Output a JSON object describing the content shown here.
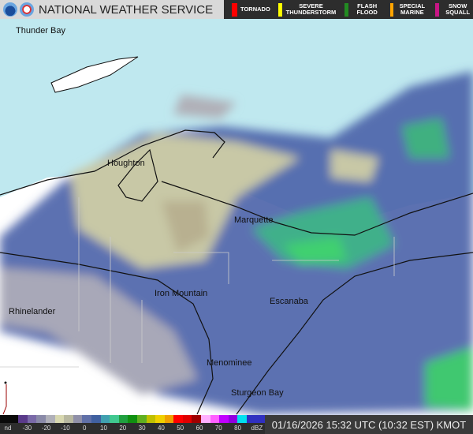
{
  "header": {
    "title": "NATIONAL WEATHER SERVICE",
    "logos": [
      "noaa-logo",
      "nws-logo"
    ]
  },
  "warnings": [
    {
      "label": "TORNADO",
      "color": "#ff0000"
    },
    {
      "label": "SEVERE THUNDERSTORM",
      "color": "#ffff00"
    },
    {
      "label": "FLASH FLOOD",
      "color": "#228b22"
    },
    {
      "label": "SPECIAL MARINE",
      "color": "#ffa500"
    },
    {
      "label": "SNOW SQUALL",
      "color": "#c71585"
    }
  ],
  "cities": [
    "Thunder Bay",
    "Houghton",
    "Marquette",
    "Iron Mountain",
    "Escanaba",
    "Rhinelander",
    "Menominee",
    "Sturgeon Bay"
  ],
  "legend": {
    "ticks": [
      "nd",
      "-30",
      "-20",
      "-10",
      "0",
      "10",
      "20",
      "30",
      "40",
      "50",
      "60",
      "70",
      "80",
      "dBZ"
    ],
    "colors": [
      "#0a0a0a",
      "#0a0a0a",
      "#5a3a8a",
      "#7a6aa8",
      "#8a8aa8",
      "#b0b0b8",
      "#d8d8b0",
      "#b8b8a0",
      "#9090a8",
      "#6070a8",
      "#4060a0",
      "#40a0b0",
      "#40c890",
      "#20a040",
      "#109010",
      "#60b020",
      "#c0c000",
      "#f0d000",
      "#f0a000",
      "#ff0000",
      "#e00000",
      "#a00000",
      "#ffb0ff",
      "#ff60ff",
      "#c000ff",
      "#9000e0",
      "#00e0f0",
      "#3030c0",
      "#3030c0"
    ]
  },
  "timestamp": "01/16/2026 15:32 UTC (10:32 EST) KMOT",
  "colors": {
    "water": "#bfe8ef",
    "land": "#ffffff",
    "radar_light": "#4a62a8",
    "radar_green": "#40d070"
  }
}
